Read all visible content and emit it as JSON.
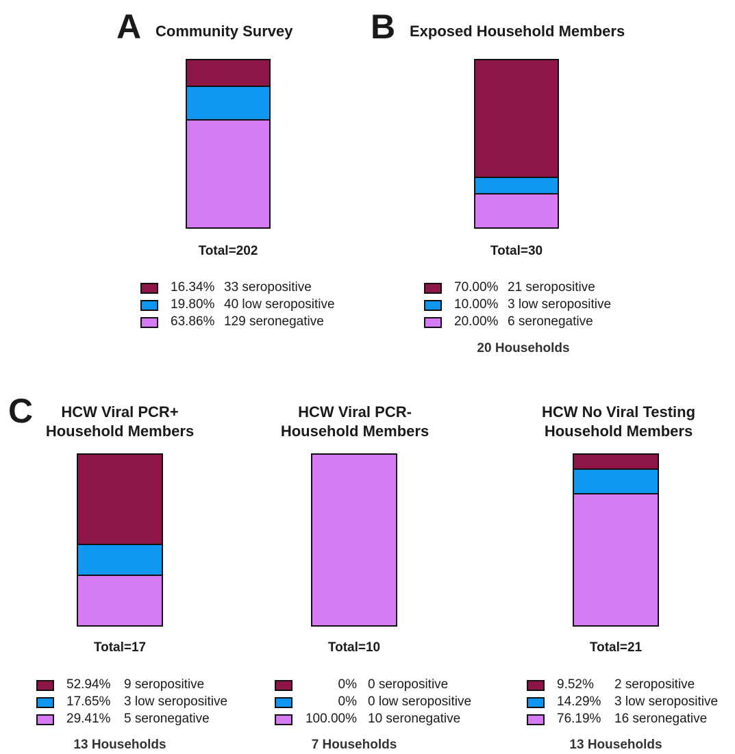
{
  "colors": {
    "seropositive": "#8e1547",
    "low_seropositive": "#0f97f2",
    "seronegative": "#d57bf4"
  },
  "panels": {
    "A": {
      "letter": "A",
      "title_lines": [
        "Community Survey"
      ],
      "total_label": "Total=202",
      "legend": [
        {
          "pct": "16.34%",
          "desc": "33 seropositive"
        },
        {
          "pct": "19.80%",
          "desc": "40 low seropositive"
        },
        {
          "pct": "63.86%",
          "desc": "129 seronegative"
        }
      ],
      "households": ""
    },
    "B": {
      "letter": "B",
      "title_lines": [
        "Exposed Household Members"
      ],
      "total_label": "Total=30",
      "legend": [
        {
          "pct": "70.00%",
          "desc": "21 seropositive"
        },
        {
          "pct": "10.00%",
          "desc": "3 low seropositive"
        },
        {
          "pct": "20.00%",
          "desc": "6 seronegative"
        }
      ],
      "households": "20 Households"
    },
    "C1": {
      "letter": "C",
      "title_lines": [
        "HCW Viral PCR+",
        "Household Members"
      ],
      "total_label": "Total=17",
      "legend": [
        {
          "pct": "52.94%",
          "desc": "9 seropositive"
        },
        {
          "pct": "17.65%",
          "desc": "3 low seropositive"
        },
        {
          "pct": "29.41%",
          "desc": "5 seronegative"
        }
      ],
      "households": "13 Households"
    },
    "C2": {
      "title_lines": [
        "HCW Viral PCR-",
        "Household Members"
      ],
      "total_label": "Total=10",
      "legend": [
        {
          "pct": "0%",
          "desc": "0 seropositive"
        },
        {
          "pct": "0%",
          "desc": "0 low seropositive"
        },
        {
          "pct": "100.00%",
          "desc": "10 seronegative"
        }
      ],
      "households": "7 Households"
    },
    "C3": {
      "title_lines": [
        "HCW No Viral Testing",
        "Household Members"
      ],
      "total_label": "Total=21",
      "legend": [
        {
          "pct": "9.52%",
          "desc": "2 seropositive"
        },
        {
          "pct": "14.29%",
          "desc": "3 low seropositive"
        },
        {
          "pct": "76.19%",
          "desc": "16 seronegative"
        }
      ],
      "households": "13 Households"
    }
  },
  "chart_data": [
    {
      "type": "bar",
      "stacked": true,
      "title": "Community Survey",
      "series": [
        {
          "name": "seropositive",
          "values": [
            16.34
          ]
        },
        {
          "name": "low seropositive",
          "values": [
            19.8
          ]
        },
        {
          "name": "seronegative",
          "values": [
            63.86
          ]
        }
      ],
      "counts": [
        33,
        40,
        129
      ],
      "total": 202
    },
    {
      "type": "bar",
      "stacked": true,
      "title": "Exposed Household Members",
      "series": [
        {
          "name": "seropositive",
          "values": [
            70.0
          ]
        },
        {
          "name": "low seropositive",
          "values": [
            10.0
          ]
        },
        {
          "name": "seronegative",
          "values": [
            20.0
          ]
        }
      ],
      "counts": [
        21,
        3,
        6
      ],
      "total": 30
    },
    {
      "type": "bar",
      "stacked": true,
      "title": "HCW Viral PCR+ Household Members",
      "series": [
        {
          "name": "seropositive",
          "values": [
            52.94
          ]
        },
        {
          "name": "low seropositive",
          "values": [
            17.65
          ]
        },
        {
          "name": "seronegative",
          "values": [
            29.41
          ]
        }
      ],
      "counts": [
        9,
        3,
        5
      ],
      "total": 17
    },
    {
      "type": "bar",
      "stacked": true,
      "title": "HCW Viral PCR- Household Members",
      "series": [
        {
          "name": "seropositive",
          "values": [
            0
          ]
        },
        {
          "name": "low seropositive",
          "values": [
            0
          ]
        },
        {
          "name": "seronegative",
          "values": [
            100.0
          ]
        }
      ],
      "counts": [
        0,
        0,
        10
      ],
      "total": 10
    },
    {
      "type": "bar",
      "stacked": true,
      "title": "HCW No Viral Testing Household Members",
      "series": [
        {
          "name": "seropositive",
          "values": [
            9.52
          ]
        },
        {
          "name": "low seropositive",
          "values": [
            14.29
          ]
        },
        {
          "name": "seronegative",
          "values": [
            76.19
          ]
        }
      ],
      "counts": [
        2,
        3,
        16
      ],
      "total": 21
    }
  ]
}
